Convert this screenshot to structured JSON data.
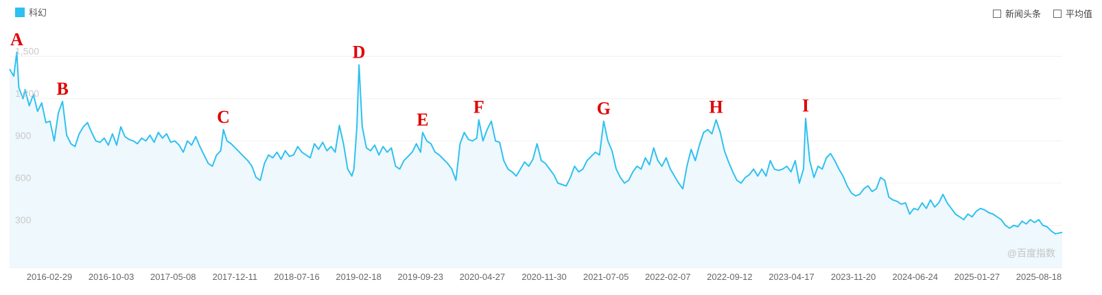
{
  "legend": {
    "label": "科幻",
    "color": "#2ec0f0"
  },
  "options": [
    {
      "label": "新闻头条",
      "checked": false
    },
    {
      "label": "平均值",
      "checked": false
    }
  ],
  "watermark": "@百度指数",
  "chart_data": {
    "type": "area",
    "series_name": "科幻",
    "ylim": [
      0,
      1550
    ],
    "yticks": [
      300,
      600,
      900,
      1200,
      1500
    ],
    "ytick_labels": [
      "300",
      "600",
      "900",
      "1,200",
      "1,500"
    ],
    "x_start": "2016-01-01",
    "x_end": "2025-09-10",
    "xtick_labels": [
      "2016-02-29",
      "2016-10-03",
      "2017-05-08",
      "2017-12-11",
      "2018-07-16",
      "2019-02-18",
      "2019-09-23",
      "2020-04-27",
      "2020-11-30",
      "2021-07-05",
      "2022-02-07",
      "2022-09-12",
      "2023-04-17",
      "2023-11-20",
      "2024-06-24",
      "2025-01-27",
      "2025-08-18"
    ],
    "points": [
      [
        "2016-01-01",
        1410
      ],
      [
        "2016-01-15",
        1360
      ],
      [
        "2016-01-25",
        1530
      ],
      [
        "2016-02-01",
        1280
      ],
      [
        "2016-02-15",
        1200
      ],
      [
        "2016-02-22",
        1265
      ],
      [
        "2016-03-07",
        1150
      ],
      [
        "2016-03-21",
        1230
      ],
      [
        "2016-04-04",
        1110
      ],
      [
        "2016-04-18",
        1170
      ],
      [
        "2016-05-02",
        1030
      ],
      [
        "2016-05-16",
        1040
      ],
      [
        "2016-05-30",
        900
      ],
      [
        "2016-06-13",
        1100
      ],
      [
        "2016-06-27",
        1180
      ],
      [
        "2016-07-11",
        940
      ],
      [
        "2016-07-25",
        880
      ],
      [
        "2016-08-08",
        860
      ],
      [
        "2016-08-22",
        950
      ],
      [
        "2016-09-05",
        1000
      ],
      [
        "2016-09-19",
        1030
      ],
      [
        "2016-10-03",
        960
      ],
      [
        "2016-10-17",
        900
      ],
      [
        "2016-10-31",
        890
      ],
      [
        "2016-11-14",
        920
      ],
      [
        "2016-11-28",
        870
      ],
      [
        "2016-12-12",
        950
      ],
      [
        "2016-12-26",
        870
      ],
      [
        "2017-01-09",
        1000
      ],
      [
        "2017-01-23",
        930
      ],
      [
        "2017-02-06",
        910
      ],
      [
        "2017-02-20",
        900
      ],
      [
        "2017-03-06",
        880
      ],
      [
        "2017-03-20",
        920
      ],
      [
        "2017-04-03",
        900
      ],
      [
        "2017-04-17",
        940
      ],
      [
        "2017-05-01",
        890
      ],
      [
        "2017-05-15",
        960
      ],
      [
        "2017-05-29",
        920
      ],
      [
        "2017-06-12",
        950
      ],
      [
        "2017-06-26",
        890
      ],
      [
        "2017-07-10",
        900
      ],
      [
        "2017-07-24",
        870
      ],
      [
        "2017-08-07",
        820
      ],
      [
        "2017-08-21",
        900
      ],
      [
        "2017-09-04",
        870
      ],
      [
        "2017-09-18",
        930
      ],
      [
        "2017-10-02",
        860
      ],
      [
        "2017-10-16",
        800
      ],
      [
        "2017-10-30",
        740
      ],
      [
        "2017-11-13",
        720
      ],
      [
        "2017-11-27",
        800
      ],
      [
        "2017-12-11",
        830
      ],
      [
        "2017-12-20",
        980
      ],
      [
        "2018-01-01",
        900
      ],
      [
        "2018-01-15",
        880
      ],
      [
        "2018-01-29",
        850
      ],
      [
        "2018-02-12",
        820
      ],
      [
        "2018-02-26",
        790
      ],
      [
        "2018-03-12",
        760
      ],
      [
        "2018-03-26",
        720
      ],
      [
        "2018-04-09",
        640
      ],
      [
        "2018-04-23",
        620
      ],
      [
        "2018-05-07",
        740
      ],
      [
        "2018-05-21",
        800
      ],
      [
        "2018-06-04",
        780
      ],
      [
        "2018-06-18",
        820
      ],
      [
        "2018-07-02",
        770
      ],
      [
        "2018-07-16",
        830
      ],
      [
        "2018-07-30",
        790
      ],
      [
        "2018-08-13",
        800
      ],
      [
        "2018-08-27",
        860
      ],
      [
        "2018-09-10",
        820
      ],
      [
        "2018-09-24",
        800
      ],
      [
        "2018-10-08",
        780
      ],
      [
        "2018-10-22",
        880
      ],
      [
        "2018-11-05",
        840
      ],
      [
        "2018-11-19",
        890
      ],
      [
        "2018-12-03",
        830
      ],
      [
        "2018-12-17",
        860
      ],
      [
        "2018-12-31",
        820
      ],
      [
        "2019-01-14",
        1010
      ],
      [
        "2019-01-28",
        880
      ],
      [
        "2019-02-11",
        700
      ],
      [
        "2019-02-25",
        650
      ],
      [
        "2019-03-04",
        700
      ],
      [
        "2019-03-14",
        1000
      ],
      [
        "2019-03-21",
        1440
      ],
      [
        "2019-04-01",
        1000
      ],
      [
        "2019-04-15",
        850
      ],
      [
        "2019-04-29",
        830
      ],
      [
        "2019-05-13",
        870
      ],
      [
        "2019-05-27",
        800
      ],
      [
        "2019-06-10",
        860
      ],
      [
        "2019-06-24",
        820
      ],
      [
        "2019-07-08",
        850
      ],
      [
        "2019-07-22",
        720
      ],
      [
        "2019-08-05",
        700
      ],
      [
        "2019-08-19",
        760
      ],
      [
        "2019-09-02",
        790
      ],
      [
        "2019-09-16",
        820
      ],
      [
        "2019-09-30",
        880
      ],
      [
        "2019-10-14",
        820
      ],
      [
        "2019-10-21",
        960
      ],
      [
        "2019-11-04",
        900
      ],
      [
        "2019-11-18",
        880
      ],
      [
        "2019-12-02",
        820
      ],
      [
        "2019-12-16",
        800
      ],
      [
        "2019-12-30",
        770
      ],
      [
        "2020-01-13",
        740
      ],
      [
        "2020-01-27",
        700
      ],
      [
        "2020-02-10",
        620
      ],
      [
        "2020-02-24",
        880
      ],
      [
        "2020-03-09",
        960
      ],
      [
        "2020-03-23",
        910
      ],
      [
        "2020-04-06",
        900
      ],
      [
        "2020-04-20",
        920
      ],
      [
        "2020-04-27",
        1050
      ],
      [
        "2020-05-11",
        900
      ],
      [
        "2020-05-25",
        980
      ],
      [
        "2020-06-08",
        1040
      ],
      [
        "2020-06-22",
        900
      ],
      [
        "2020-07-06",
        890
      ],
      [
        "2020-07-20",
        760
      ],
      [
        "2020-08-03",
        700
      ],
      [
        "2020-08-17",
        680
      ],
      [
        "2020-08-31",
        650
      ],
      [
        "2020-09-14",
        700
      ],
      [
        "2020-09-28",
        750
      ],
      [
        "2020-10-12",
        720
      ],
      [
        "2020-10-26",
        770
      ],
      [
        "2020-11-09",
        880
      ],
      [
        "2020-11-23",
        760
      ],
      [
        "2020-12-07",
        740
      ],
      [
        "2020-12-21",
        700
      ],
      [
        "2021-01-04",
        660
      ],
      [
        "2021-01-18",
        600
      ],
      [
        "2021-02-01",
        590
      ],
      [
        "2021-02-15",
        580
      ],
      [
        "2021-03-01",
        640
      ],
      [
        "2021-03-15",
        720
      ],
      [
        "2021-03-29",
        680
      ],
      [
        "2021-04-12",
        700
      ],
      [
        "2021-04-26",
        760
      ],
      [
        "2021-05-10",
        790
      ],
      [
        "2021-05-24",
        820
      ],
      [
        "2021-06-07",
        800
      ],
      [
        "2021-06-21",
        1040
      ],
      [
        "2021-07-05",
        900
      ],
      [
        "2021-07-19",
        830
      ],
      [
        "2021-08-02",
        700
      ],
      [
        "2021-08-16",
        640
      ],
      [
        "2021-08-30",
        600
      ],
      [
        "2021-09-13",
        620
      ],
      [
        "2021-09-27",
        680
      ],
      [
        "2021-10-11",
        720
      ],
      [
        "2021-10-25",
        700
      ],
      [
        "2021-11-08",
        780
      ],
      [
        "2021-11-22",
        730
      ],
      [
        "2021-12-06",
        850
      ],
      [
        "2021-12-20",
        760
      ],
      [
        "2022-01-03",
        720
      ],
      [
        "2022-01-17",
        780
      ],
      [
        "2022-01-31",
        700
      ],
      [
        "2022-02-14",
        650
      ],
      [
        "2022-02-28",
        600
      ],
      [
        "2022-03-14",
        560
      ],
      [
        "2022-03-28",
        720
      ],
      [
        "2022-04-11",
        840
      ],
      [
        "2022-04-25",
        760
      ],
      [
        "2022-05-09",
        870
      ],
      [
        "2022-05-23",
        960
      ],
      [
        "2022-06-06",
        980
      ],
      [
        "2022-06-20",
        950
      ],
      [
        "2022-07-04",
        1050
      ],
      [
        "2022-07-18",
        960
      ],
      [
        "2022-08-01",
        830
      ],
      [
        "2022-08-15",
        750
      ],
      [
        "2022-08-29",
        680
      ],
      [
        "2022-09-12",
        620
      ],
      [
        "2022-09-26",
        600
      ],
      [
        "2022-10-10",
        640
      ],
      [
        "2022-10-24",
        660
      ],
      [
        "2022-11-07",
        700
      ],
      [
        "2022-11-21",
        650
      ],
      [
        "2022-12-05",
        700
      ],
      [
        "2022-12-19",
        650
      ],
      [
        "2023-01-02",
        760
      ],
      [
        "2023-01-16",
        700
      ],
      [
        "2023-01-30",
        690
      ],
      [
        "2023-02-13",
        700
      ],
      [
        "2023-02-27",
        720
      ],
      [
        "2023-03-13",
        680
      ],
      [
        "2023-03-27",
        760
      ],
      [
        "2023-04-10",
        600
      ],
      [
        "2023-04-24",
        700
      ],
      [
        "2023-05-01",
        1060
      ],
      [
        "2023-05-15",
        760
      ],
      [
        "2023-05-29",
        640
      ],
      [
        "2023-06-12",
        720
      ],
      [
        "2023-06-26",
        700
      ],
      [
        "2023-07-10",
        780
      ],
      [
        "2023-07-24",
        810
      ],
      [
        "2023-08-07",
        760
      ],
      [
        "2023-08-21",
        700
      ],
      [
        "2023-09-04",
        650
      ],
      [
        "2023-09-18",
        580
      ],
      [
        "2023-10-02",
        530
      ],
      [
        "2023-10-16",
        510
      ],
      [
        "2023-10-30",
        520
      ],
      [
        "2023-11-13",
        560
      ],
      [
        "2023-11-27",
        580
      ],
      [
        "2023-12-11",
        540
      ],
      [
        "2023-12-25",
        560
      ],
      [
        "2024-01-08",
        640
      ],
      [
        "2024-01-22",
        620
      ],
      [
        "2024-02-05",
        500
      ],
      [
        "2024-02-19",
        480
      ],
      [
        "2024-03-04",
        470
      ],
      [
        "2024-03-18",
        450
      ],
      [
        "2024-04-01",
        460
      ],
      [
        "2024-04-15",
        380
      ],
      [
        "2024-04-29",
        420
      ],
      [
        "2024-05-13",
        410
      ],
      [
        "2024-05-27",
        460
      ],
      [
        "2024-06-10",
        420
      ],
      [
        "2024-06-24",
        480
      ],
      [
        "2024-07-08",
        430
      ],
      [
        "2024-07-22",
        460
      ],
      [
        "2024-08-05",
        520
      ],
      [
        "2024-08-19",
        460
      ],
      [
        "2024-09-02",
        420
      ],
      [
        "2024-09-16",
        380
      ],
      [
        "2024-09-30",
        360
      ],
      [
        "2024-10-14",
        340
      ],
      [
        "2024-10-28",
        380
      ],
      [
        "2024-11-11",
        360
      ],
      [
        "2024-11-25",
        400
      ],
      [
        "2024-12-09",
        420
      ],
      [
        "2024-12-23",
        410
      ],
      [
        "2025-01-06",
        390
      ],
      [
        "2025-01-20",
        380
      ],
      [
        "2025-02-03",
        360
      ],
      [
        "2025-02-17",
        340
      ],
      [
        "2025-03-03",
        300
      ],
      [
        "2025-03-17",
        280
      ],
      [
        "2025-03-31",
        300
      ],
      [
        "2025-04-14",
        290
      ],
      [
        "2025-04-28",
        330
      ],
      [
        "2025-05-12",
        310
      ],
      [
        "2025-05-26",
        340
      ],
      [
        "2025-06-09",
        320
      ],
      [
        "2025-06-23",
        340
      ],
      [
        "2025-07-07",
        300
      ],
      [
        "2025-07-21",
        290
      ],
      [
        "2025-08-04",
        260
      ],
      [
        "2025-08-18",
        240
      ],
      [
        "2025-09-10",
        250
      ]
    ],
    "annotations": [
      {
        "label": "A",
        "date": "2016-01-25"
      },
      {
        "label": "B",
        "date": "2016-06-27"
      },
      {
        "label": "C",
        "date": "2017-12-20"
      },
      {
        "label": "D",
        "date": "2019-03-21"
      },
      {
        "label": "E",
        "date": "2019-10-21"
      },
      {
        "label": "F",
        "date": "2020-04-27"
      },
      {
        "label": "G",
        "date": "2021-06-21"
      },
      {
        "label": "H",
        "date": "2022-07-04"
      },
      {
        "label": "I",
        "date": "2023-05-01"
      }
    ]
  }
}
